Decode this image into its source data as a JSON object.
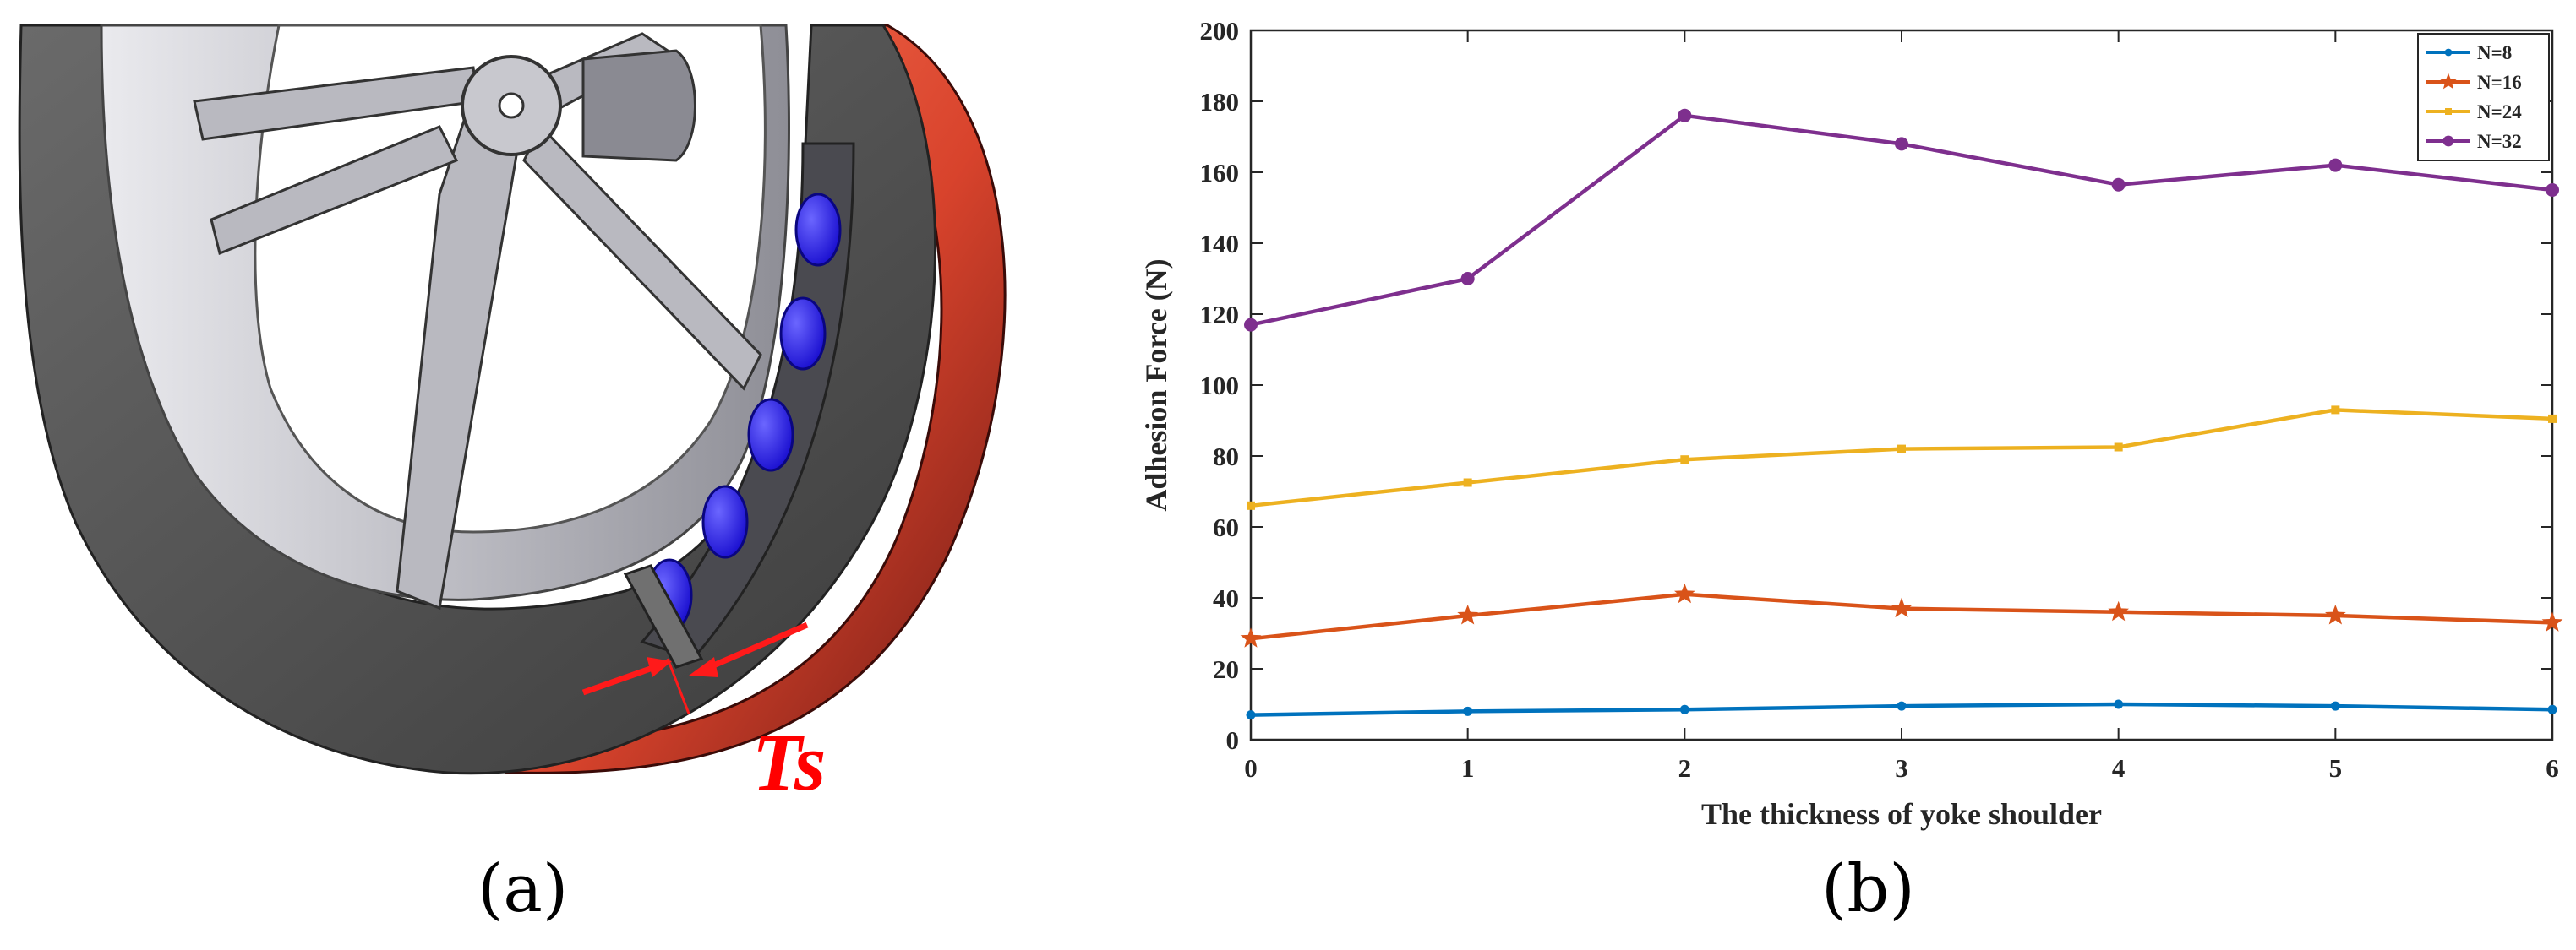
{
  "panel_a": {
    "caption": "(a)",
    "dimension_label": "Ts",
    "colors": {
      "tire": "#5a5a5a",
      "rim": "#cfcfd4",
      "magnet": "#2a1cf5",
      "shell": "#e0503a",
      "arrow": "#ff1a1a"
    }
  },
  "panel_b": {
    "caption": "(b)"
  },
  "chart_data": {
    "type": "line",
    "xlabel": "The thickness of yoke shoulder",
    "ylabel": "Adhesion Force (N)",
    "xlim": [
      0,
      6
    ],
    "ylim": [
      0,
      200
    ],
    "x": [
      0,
      1,
      2,
      3,
      4,
      5,
      6
    ],
    "xticks": [
      "0",
      "1",
      "2",
      "3",
      "4",
      "5",
      "6"
    ],
    "yticks": [
      "0",
      "20",
      "40",
      "60",
      "80",
      "100",
      "120",
      "140",
      "160",
      "180",
      "200"
    ],
    "legend_position": "top-right",
    "series": [
      {
        "name": "N=8",
        "color": "#0072BD",
        "marker": "dot",
        "values": [
          7,
          8,
          8.5,
          9.5,
          10,
          9.5,
          8.5
        ]
      },
      {
        "name": "N=16",
        "color": "#D95319",
        "marker": "star",
        "values": [
          28.5,
          35,
          41,
          37,
          36,
          35,
          33
        ]
      },
      {
        "name": "N=24",
        "color": "#EDB120",
        "marker": "square",
        "values": [
          66,
          72.5,
          79,
          82,
          82.5,
          93,
          90.5
        ]
      },
      {
        "name": "N=32",
        "color": "#7E2F8E",
        "marker": "circle",
        "values": [
          117,
          130,
          176,
          168,
          156.5,
          162,
          155
        ]
      }
    ]
  }
}
